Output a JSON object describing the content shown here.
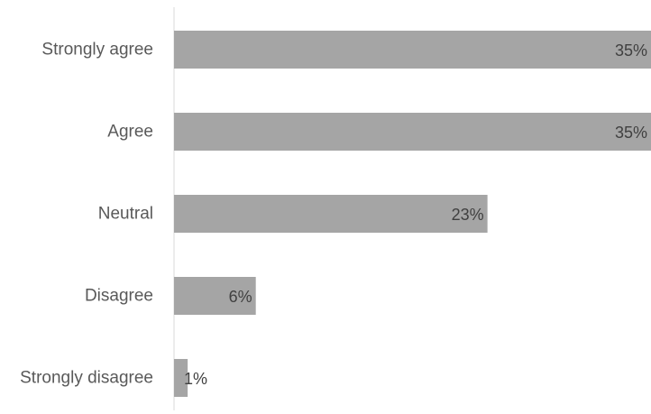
{
  "chart_data": {
    "type": "bar",
    "orientation": "horizontal",
    "categories": [
      "Strongly agree",
      "Agree",
      "Neutral",
      "Disagree",
      "Strongly disagree"
    ],
    "values": [
      35,
      35,
      23,
      6,
      1
    ],
    "value_labels": [
      "35%",
      "35%",
      "23%",
      "6%",
      "1%"
    ],
    "xlim": [
      0,
      35
    ],
    "grid": false,
    "legend": "none",
    "bar_color": "#a5a5a5",
    "axis_color": "#d9d9d9"
  }
}
